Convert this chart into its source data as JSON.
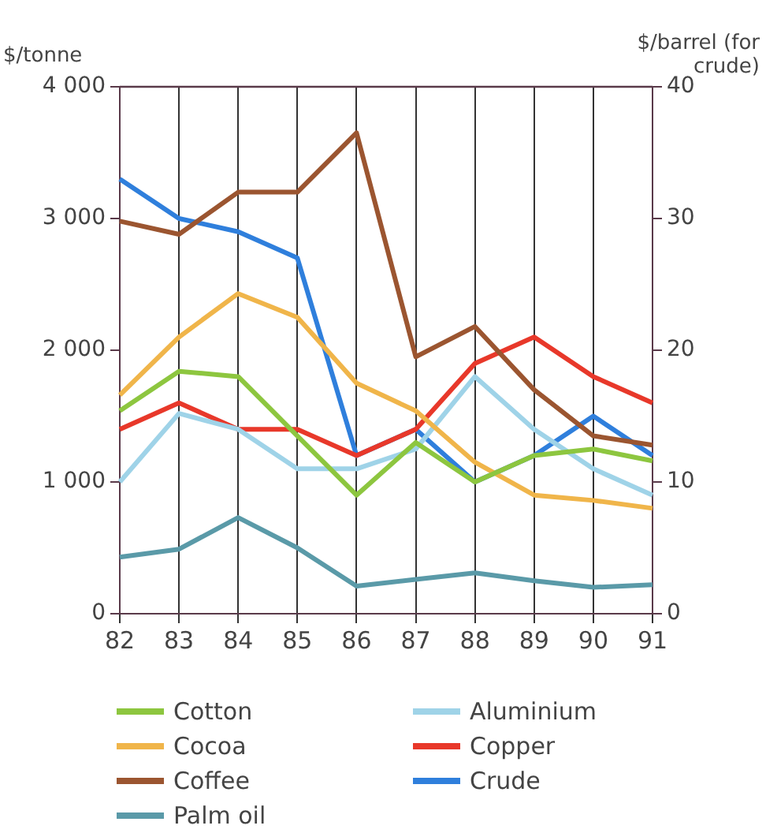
{
  "chart_data": {
    "type": "line",
    "ylabel": "$/tonne",
    "y2label": "$/barrel (for crude)",
    "categories": [
      "82",
      "83",
      "84",
      "85",
      "86",
      "87",
      "88",
      "89",
      "90",
      "91"
    ],
    "series": [
      {
        "name": "Cotton",
        "color": "#8dc63f",
        "values": [
          1540,
          1840,
          1800,
          1350,
          900,
          1300,
          1000,
          1200,
          1250,
          1160
        ]
      },
      {
        "name": "Cocoa",
        "color": "#f0b54a",
        "values": [
          1660,
          2100,
          2430,
          2250,
          1750,
          1540,
          1150,
          900,
          860,
          800
        ]
      },
      {
        "name": "Coffee",
        "color": "#9b5530",
        "values": [
          2980,
          2880,
          3200,
          3200,
          3650,
          1950,
          2180,
          1700,
          1350,
          1280
        ]
      },
      {
        "name": "Palm oil",
        "color": "#5a9aa8",
        "values": [
          430,
          490,
          730,
          500,
          210,
          260,
          310,
          250,
          200,
          220
        ]
      },
      {
        "name": "Aluminium",
        "color": "#9fd3e8",
        "values": [
          1000,
          1520,
          1400,
          1100,
          1100,
          1250,
          1800,
          1400,
          1100,
          900
        ]
      },
      {
        "name": "Copper",
        "color": "#e8382a",
        "values": [
          1400,
          1600,
          1400,
          1400,
          1200,
          1400,
          1900,
          2100,
          1800,
          1600
        ]
      },
      {
        "name": "Crude",
        "color": "#2f7fdc",
        "axis": "y2",
        "values": [
          33,
          30,
          29,
          27,
          12,
          14,
          10,
          12,
          15,
          12
        ]
      }
    ],
    "ylim": [
      0,
      4000
    ],
    "yticks": [
      0,
      {
        "value": 1000,
        "label": "1 000"
      },
      {
        "value": 2000,
        "label": "2 000"
      },
      {
        "value": 3000,
        "label": "3 000"
      },
      {
        "value": 4000,
        "label": "4 000"
      }
    ],
    "y2lim": [
      0,
      40
    ],
    "y2ticks": [
      0,
      10,
      20,
      30,
      40
    ],
    "grid": "x",
    "legend": "bottom",
    "marker": "none",
    "line_style": "solid"
  }
}
